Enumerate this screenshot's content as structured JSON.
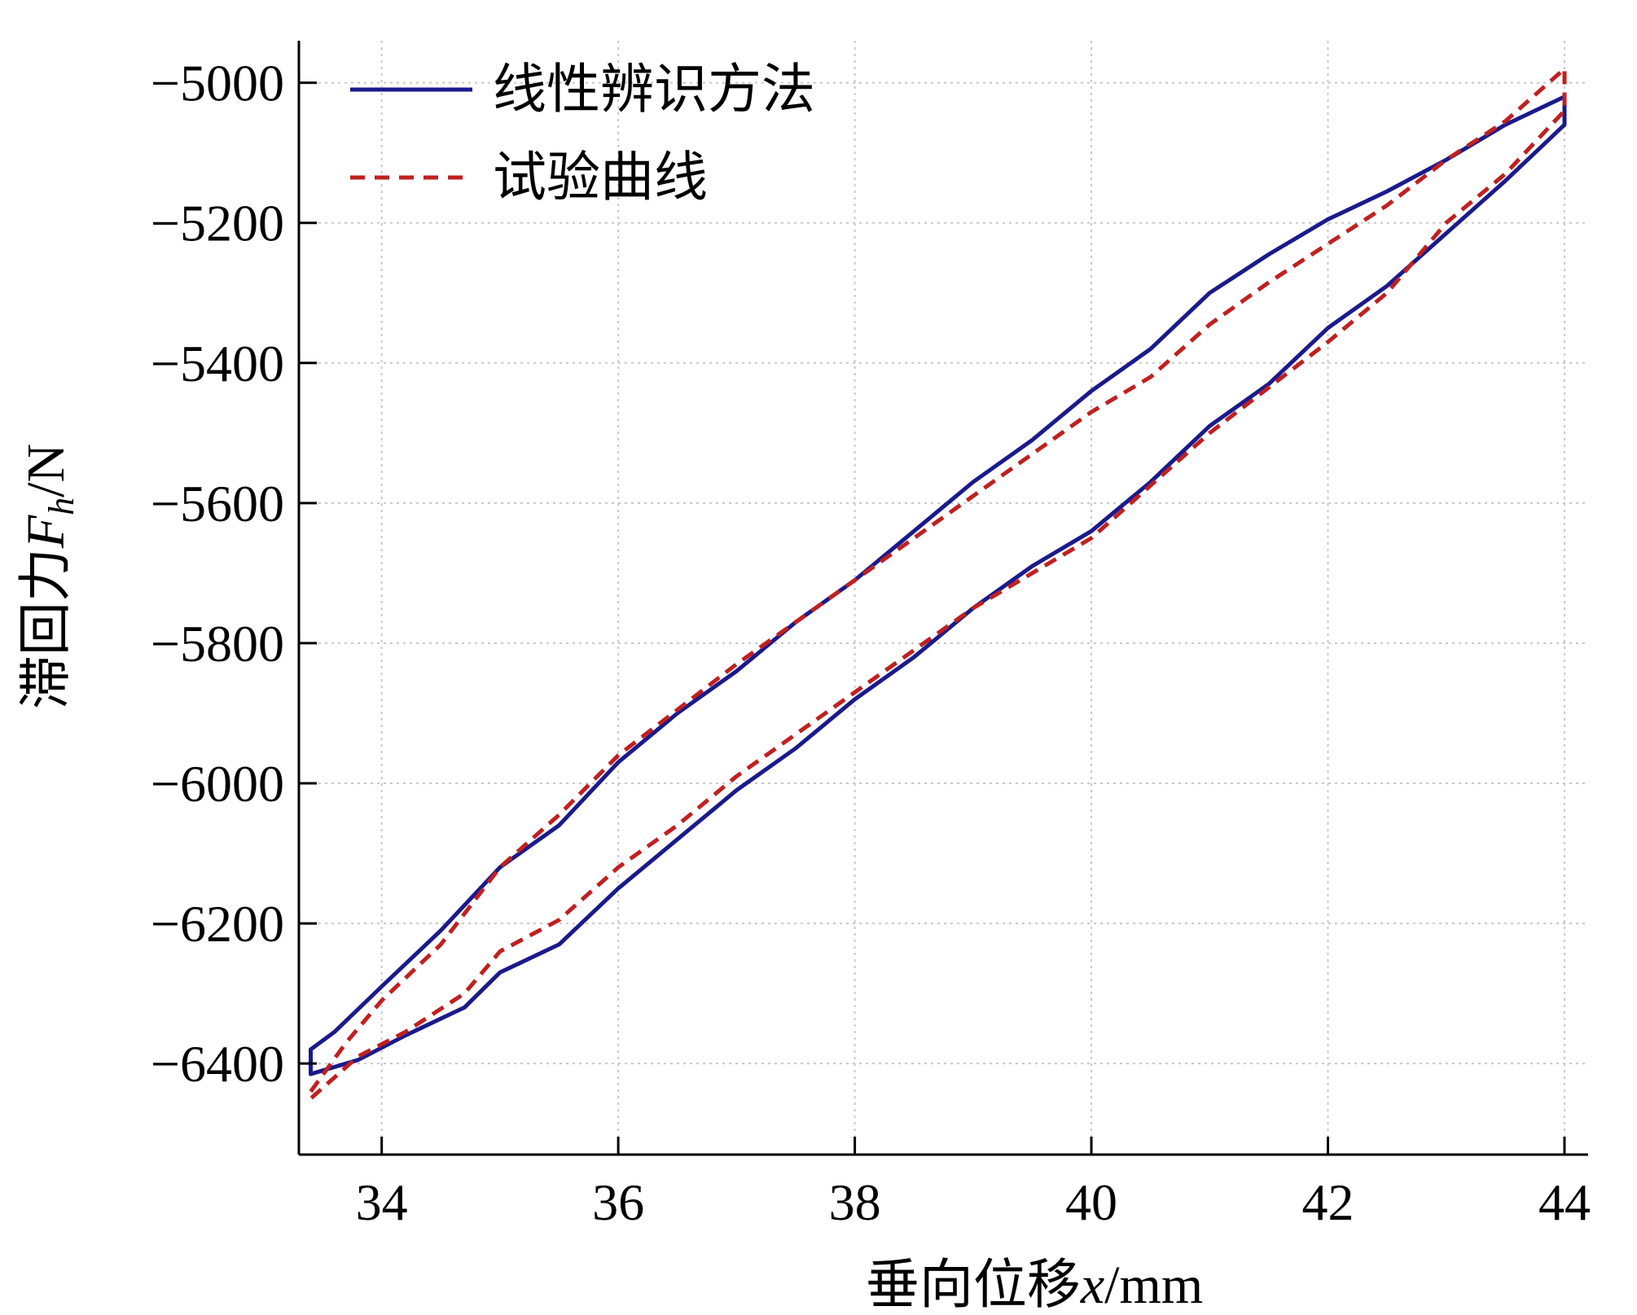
{
  "chart_data": {
    "type": "line",
    "title": "",
    "xlabel": {
      "prefix": "垂向位移",
      "var": "x",
      "unit": "/mm"
    },
    "ylabel": {
      "prefix": "滞回力",
      "var": "F",
      "sub": "h",
      "unit": "/N"
    },
    "xlim": [
      33.3,
      44.2
    ],
    "ylim": [
      -6530,
      -4940
    ],
    "x_ticks": [
      34,
      36,
      38,
      40,
      42,
      44
    ],
    "y_ticks": [
      -5000,
      -5200,
      -5400,
      -5600,
      -5800,
      -6000,
      -6200,
      -6400
    ],
    "x_tick_labels": [
      "34",
      "36",
      "38",
      "40",
      "42",
      "44"
    ],
    "y_tick_labels": [
      "−5000",
      "−5200",
      "−5400",
      "−5600",
      "−5800",
      "−6000",
      "−6200",
      "−6400"
    ],
    "grid": true,
    "legend_position": "top-left",
    "series": [
      {
        "name": "线性辨识方法",
        "color": "#1a1a8c",
        "style": "solid",
        "upper": [
          [
            33.4,
            -6380
          ],
          [
            33.6,
            -6355
          ],
          [
            34.0,
            -6290
          ],
          [
            34.5,
            -6210
          ],
          [
            35.0,
            -6120
          ],
          [
            35.5,
            -6060
          ],
          [
            36.0,
            -5970
          ],
          [
            36.5,
            -5900
          ],
          [
            37.0,
            -5840
          ],
          [
            37.5,
            -5770
          ],
          [
            38.0,
            -5710
          ],
          [
            38.5,
            -5640
          ],
          [
            39.0,
            -5570
          ],
          [
            39.5,
            -5510
          ],
          [
            40.0,
            -5440
          ],
          [
            40.5,
            -5380
          ],
          [
            41.0,
            -5300
          ],
          [
            41.5,
            -5245
          ],
          [
            42.0,
            -5195
          ],
          [
            42.5,
            -5155
          ],
          [
            43.0,
            -5110
          ],
          [
            43.5,
            -5060
          ],
          [
            44.0,
            -5020
          ]
        ],
        "lower": [
          [
            33.4,
            -6415
          ],
          [
            33.8,
            -6395
          ],
          [
            34.2,
            -6360
          ],
          [
            34.7,
            -6320
          ],
          [
            35.0,
            -6270
          ],
          [
            35.5,
            -6230
          ],
          [
            36.0,
            -6150
          ],
          [
            36.5,
            -6080
          ],
          [
            37.0,
            -6010
          ],
          [
            37.5,
            -5950
          ],
          [
            38.0,
            -5880
          ],
          [
            38.5,
            -5820
          ],
          [
            39.0,
            -5750
          ],
          [
            39.5,
            -5690
          ],
          [
            40.0,
            -5640
          ],
          [
            40.5,
            -5570
          ],
          [
            41.0,
            -5490
          ],
          [
            41.5,
            -5430
          ],
          [
            42.0,
            -5350
          ],
          [
            42.5,
            -5290
          ],
          [
            43.0,
            -5215
          ],
          [
            43.5,
            -5140
          ],
          [
            44.0,
            -5060
          ]
        ]
      },
      {
        "name": "试验曲线",
        "color": "#c02020",
        "style": "dashed",
        "upper": [
          [
            33.4,
            -6440
          ],
          [
            33.7,
            -6370
          ],
          [
            34.0,
            -6310
          ],
          [
            34.5,
            -6230
          ],
          [
            35.0,
            -6120
          ],
          [
            35.5,
            -6045
          ],
          [
            36.0,
            -5960
          ],
          [
            36.5,
            -5895
          ],
          [
            37.0,
            -5830
          ],
          [
            37.5,
            -5770
          ],
          [
            38.0,
            -5710
          ],
          [
            38.5,
            -5650
          ],
          [
            39.0,
            -5590
          ],
          [
            39.5,
            -5530
          ],
          [
            40.0,
            -5470
          ],
          [
            40.5,
            -5420
          ],
          [
            41.0,
            -5345
          ],
          [
            41.5,
            -5285
          ],
          [
            42.0,
            -5230
          ],
          [
            42.5,
            -5175
          ],
          [
            43.0,
            -5110
          ],
          [
            43.5,
            -5055
          ],
          [
            44.0,
            -4980
          ]
        ],
        "lower": [
          [
            33.4,
            -6450
          ],
          [
            33.8,
            -6390
          ],
          [
            34.2,
            -6355
          ],
          [
            34.7,
            -6300
          ],
          [
            35.0,
            -6240
          ],
          [
            35.5,
            -6195
          ],
          [
            36.0,
            -6120
          ],
          [
            36.5,
            -6060
          ],
          [
            37.0,
            -5990
          ],
          [
            37.5,
            -5930
          ],
          [
            38.0,
            -5870
          ],
          [
            38.5,
            -5810
          ],
          [
            39.0,
            -5750
          ],
          [
            39.5,
            -5700
          ],
          [
            40.0,
            -5650
          ],
          [
            40.5,
            -5575
          ],
          [
            41.0,
            -5500
          ],
          [
            41.5,
            -5435
          ],
          [
            42.0,
            -5370
          ],
          [
            42.5,
            -5300
          ],
          [
            43.0,
            -5200
          ],
          [
            43.5,
            -5130
          ],
          [
            44.0,
            -5040
          ]
        ]
      }
    ]
  }
}
